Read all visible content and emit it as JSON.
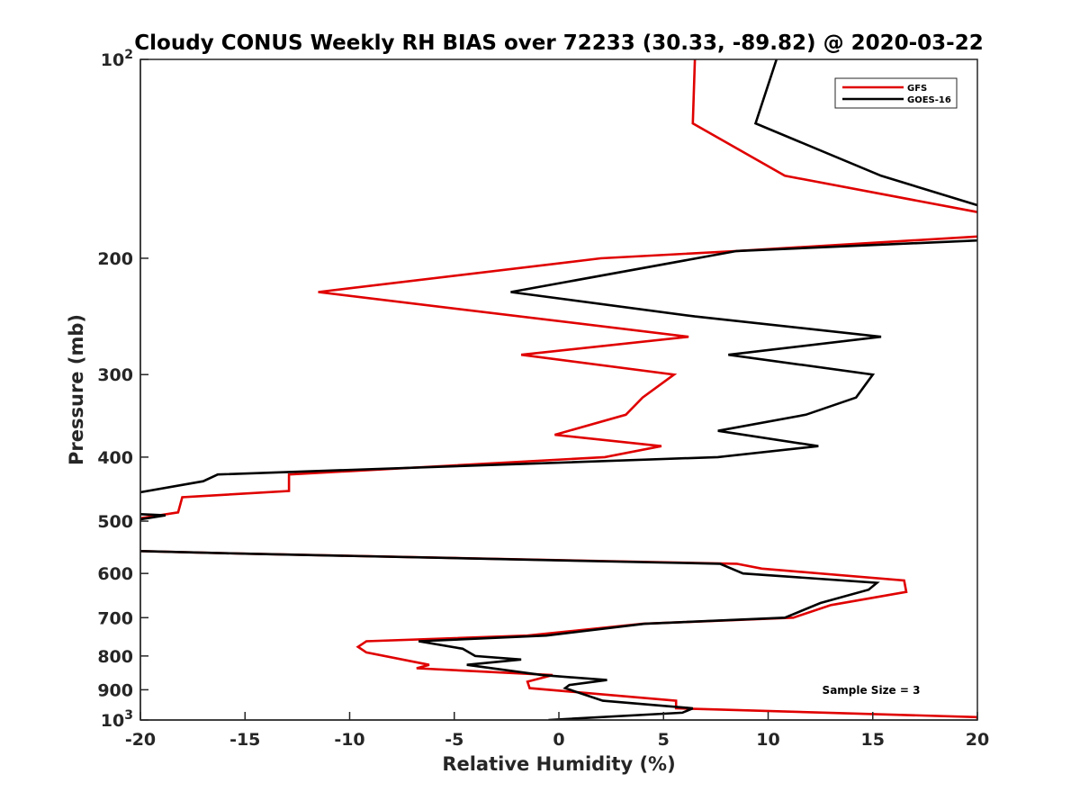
{
  "chart_data": {
    "type": "line",
    "title": "Cloudy CONUS Weekly RH BIAS over 72233 (30.33, -89.82) @ 2020-03-22",
    "xlabel": "Relative Humidity (%)",
    "ylabel": "Pressure (mb)",
    "xlim": [
      -20,
      20
    ],
    "ylim": [
      100,
      1000
    ],
    "yscale": "log",
    "yreversed": true,
    "grid": false,
    "x_ticks": [
      {
        "value": -20,
        "label": "-20"
      },
      {
        "value": -15,
        "label": "-15"
      },
      {
        "value": -10,
        "label": "-10"
      },
      {
        "value": -5,
        "label": "-5"
      },
      {
        "value": 0,
        "label": "0"
      },
      {
        "value": 5,
        "label": "5"
      },
      {
        "value": 10,
        "label": "10"
      },
      {
        "value": 15,
        "label": "15"
      },
      {
        "value": 20,
        "label": "20"
      }
    ],
    "y_ticks": [
      {
        "value": 200,
        "label": "200"
      },
      {
        "value": 300,
        "label": "300"
      },
      {
        "value": 400,
        "label": "400"
      },
      {
        "value": 500,
        "label": "500"
      },
      {
        "value": 600,
        "label": "600"
      },
      {
        "value": 700,
        "label": "700"
      },
      {
        "value": 800,
        "label": "800"
      },
      {
        "value": 900,
        "label": "900"
      }
    ],
    "y_power_ticks": [
      {
        "value": 100,
        "base": "10",
        "exp": "2"
      },
      {
        "value": 1000,
        "base": "10",
        "exp": "3"
      }
    ],
    "legend": {
      "position": "top-right"
    },
    "annotation": "Sample Size = 3",
    "series": [
      {
        "name": "GFS",
        "color": "#e00000",
        "points": [
          [
            6.5,
            100
          ],
          [
            6.4,
            125
          ],
          [
            10.8,
            150
          ],
          [
            22,
            175
          ],
          [
            20.5,
            185
          ],
          [
            8.5,
            195
          ],
          [
            2,
            200
          ],
          [
            -11.5,
            225
          ],
          [
            6.2,
            263
          ],
          [
            -1.8,
            280
          ],
          [
            5.5,
            300
          ],
          [
            4,
            325
          ],
          [
            3.2,
            345
          ],
          [
            -0.2,
            370
          ],
          [
            4.9,
            385
          ],
          [
            2.2,
            400
          ],
          [
            -12.9,
            425
          ],
          [
            -12.9,
            450
          ],
          [
            -18,
            460
          ],
          [
            -18.2,
            485
          ],
          [
            -20,
            495
          ],
          [
            -25,
            500
          ],
          [
            -25,
            550
          ],
          [
            -20,
            555
          ],
          [
            -15,
            560
          ],
          [
            8.5,
            580
          ],
          [
            9.7,
            590
          ],
          [
            16.5,
            615
          ],
          [
            16.6,
            640
          ],
          [
            13,
            670
          ],
          [
            11.2,
            700
          ],
          [
            4,
            715
          ],
          [
            -1.5,
            745
          ],
          [
            -9.2,
            760
          ],
          [
            -9.6,
            775
          ],
          [
            -9.2,
            790
          ],
          [
            -6.2,
            825
          ],
          [
            -6.8,
            835
          ],
          [
            -0.3,
            855
          ],
          [
            -1.5,
            875
          ],
          [
            -1.4,
            895
          ],
          [
            5.6,
            935
          ],
          [
            5.6,
            960
          ],
          [
            20,
            990
          ],
          [
            20,
            1000
          ]
        ]
      },
      {
        "name": "GOES-16",
        "color": "#000000",
        "points": [
          [
            10.4,
            100
          ],
          [
            9.4,
            125
          ],
          [
            15.4,
            150
          ],
          [
            21,
            170
          ],
          [
            22,
            175
          ],
          [
            22,
            185
          ],
          [
            20,
            188
          ],
          [
            8.5,
            195
          ],
          [
            -2.3,
            225
          ],
          [
            6.5,
            245
          ],
          [
            15.4,
            263
          ],
          [
            8.1,
            280
          ],
          [
            15,
            300
          ],
          [
            14.2,
            325
          ],
          [
            11.8,
            345
          ],
          [
            7.6,
            365
          ],
          [
            12.4,
            385
          ],
          [
            7.6,
            400
          ],
          [
            -16.3,
            425
          ],
          [
            -17,
            435
          ],
          [
            -20.5,
            455
          ],
          [
            -25,
            470
          ],
          [
            -25,
            480
          ],
          [
            -18.8,
            490
          ],
          [
            -20.5,
            500
          ],
          [
            -25,
            500
          ],
          [
            -25,
            545
          ],
          [
            -20,
            555
          ],
          [
            -15,
            560
          ],
          [
            7.7,
            580
          ],
          [
            8.8,
            600
          ],
          [
            15.2,
            620
          ],
          [
            14.8,
            635
          ],
          [
            12.5,
            665
          ],
          [
            10.8,
            700
          ],
          [
            4.1,
            715
          ],
          [
            -0.6,
            745
          ],
          [
            -6.7,
            760
          ],
          [
            -4.6,
            780
          ],
          [
            -4,
            800
          ],
          [
            -1.8,
            810
          ],
          [
            -4.4,
            825
          ],
          [
            -0.8,
            855
          ],
          [
            2.3,
            870
          ],
          [
            0.5,
            885
          ],
          [
            0.3,
            895
          ],
          [
            2.1,
            935
          ],
          [
            6.4,
            960
          ],
          [
            5.9,
            975
          ],
          [
            -0.5,
            1000
          ]
        ]
      }
    ]
  }
}
